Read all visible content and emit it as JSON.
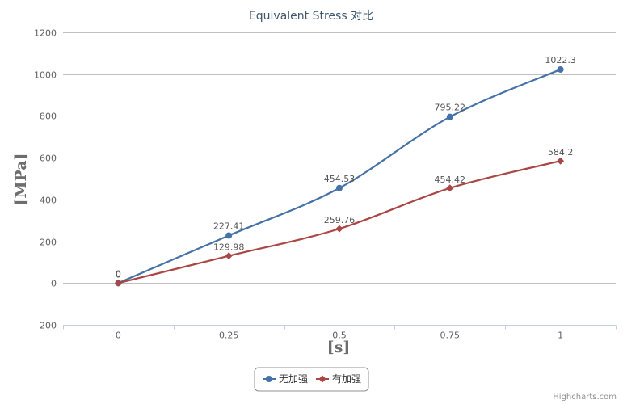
{
  "chart_data": {
    "type": "line",
    "title": "Equivalent Stress 对比",
    "xlabel": "[s]",
    "ylabel": "[MPa]",
    "x": [
      0,
      0.25,
      0.5,
      0.75,
      1
    ],
    "x_tick_labels": [
      "0",
      "0.25",
      "0.5",
      "0.75",
      "1"
    ],
    "ylim": [
      -200,
      1200
    ],
    "y_ticks": [
      -200,
      0,
      200,
      400,
      600,
      800,
      1000,
      1200
    ],
    "grid": true,
    "legend_position": "bottom-center",
    "series": [
      {
        "name": "无加强",
        "values": [
          0,
          227.41,
          454.53,
          795.22,
          1022.3
        ],
        "labels": [
          "0",
          "227.41",
          "454.53",
          "795.22",
          "1022.3"
        ],
        "color": "#4572a7",
        "marker": "circle"
      },
      {
        "name": "有加强",
        "values": [
          0,
          129.98,
          259.76,
          454.42,
          584.2
        ],
        "labels": [
          "0",
          "129.98",
          "259.76",
          "454.42",
          "584.2"
        ],
        "color": "#aa4643",
        "marker": "diamond"
      }
    ]
  },
  "credits": "Highcharts.com"
}
